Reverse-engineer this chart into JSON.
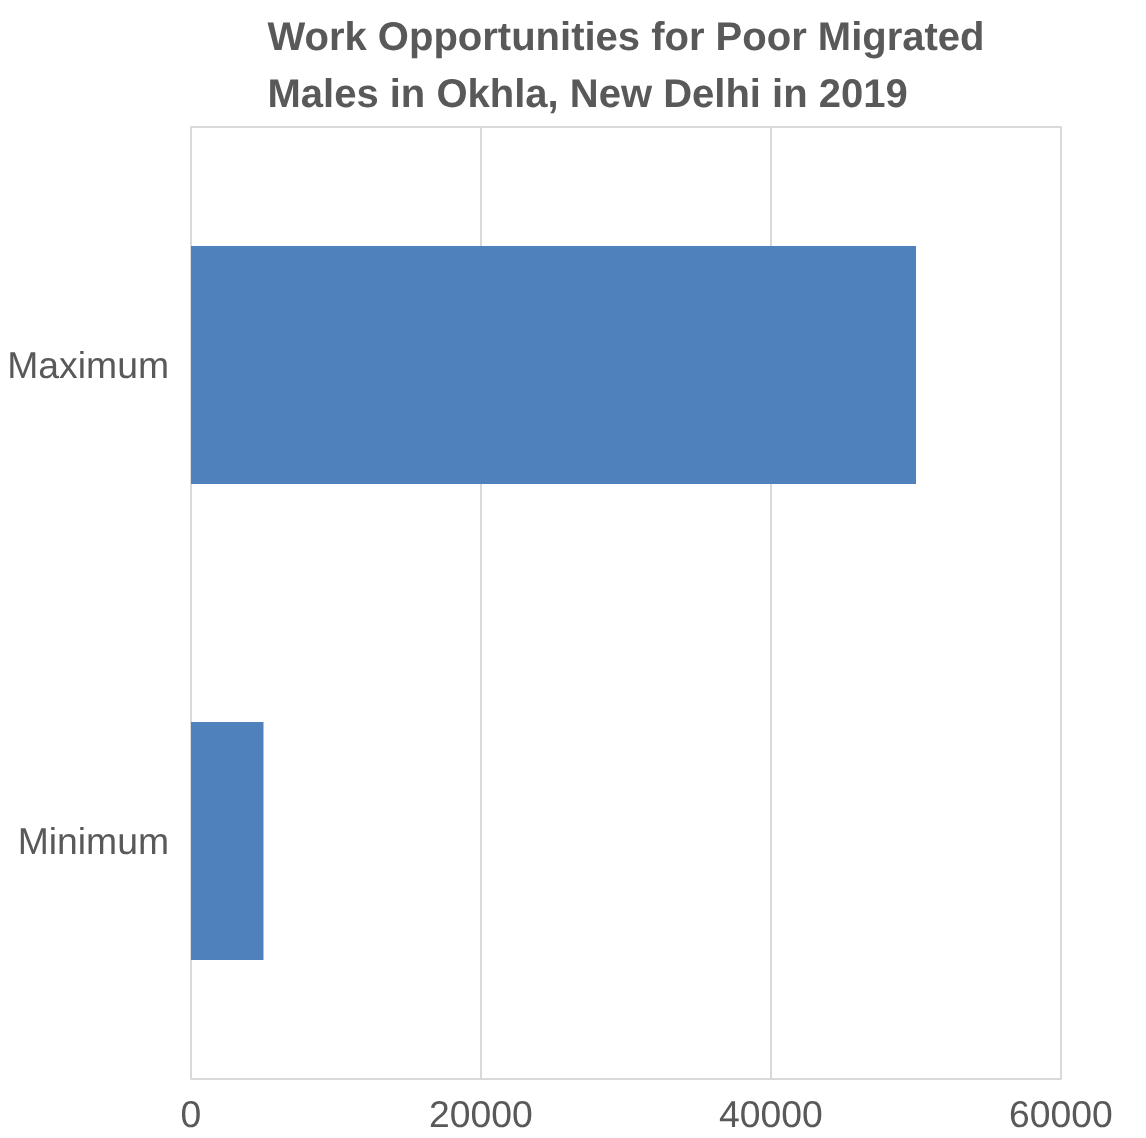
{
  "chart_data": {
    "type": "bar",
    "orientation": "horizontal",
    "title": "Work Opportunities for Poor Migrated Males in Okhla, New Delhi in 2019",
    "categories": [
      "Maximum",
      "Minimum"
    ],
    "values": [
      50000,
      5000
    ],
    "color": "#4f81bd",
    "xlim": [
      0,
      60000
    ],
    "xticks": [
      0,
      20000,
      40000,
      60000
    ],
    "grid": "x"
  }
}
